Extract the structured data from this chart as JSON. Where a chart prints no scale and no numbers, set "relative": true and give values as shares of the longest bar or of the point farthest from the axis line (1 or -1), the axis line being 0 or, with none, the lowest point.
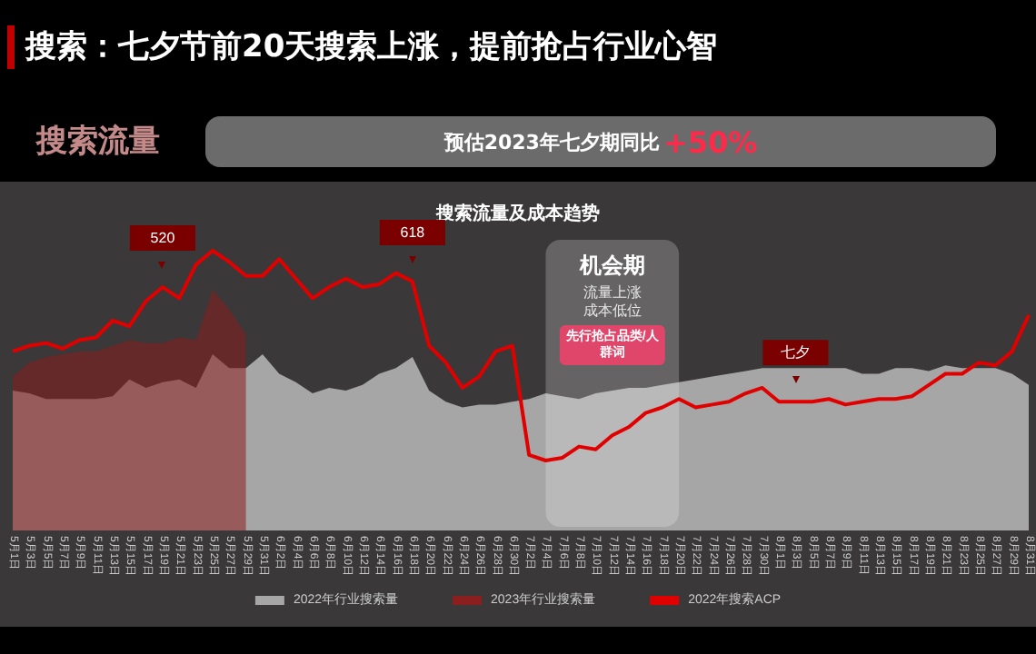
{
  "chart_data": {
    "type": "area",
    "title": "搜索：七夕节前20天搜索上涨，提前抢占行业心智",
    "subtitle": "搜索流量及成本趋势",
    "relative": true,
    "marker": "none",
    "legend": "bottom",
    "grid": false,
    "tick_labels": "x",
    "categories": [
      "5月1日",
      "5月3日",
      "5月5日",
      "5月7日",
      "5月9日",
      "5月11日",
      "5月13日",
      "5月15日",
      "5月17日",
      "5月19日",
      "5月21日",
      "5月23日",
      "5月25日",
      "5月27日",
      "5月29日",
      "5月31日",
      "6月2日",
      "6月4日",
      "6月6日",
      "6月8日",
      "6月10日",
      "6月12日",
      "6月14日",
      "6月16日",
      "6月18日",
      "6月20日",
      "6月22日",
      "6月24日",
      "6月26日",
      "6月28日",
      "6月30日",
      "7月2日",
      "7月4日",
      "7月6日",
      "7月8日",
      "7月10日",
      "7月12日",
      "7月14日",
      "7月16日",
      "7月18日",
      "7月20日",
      "7月22日",
      "7月24日",
      "7月26日",
      "7月28日",
      "7月30日",
      "8月1日",
      "8月3日",
      "8月5日",
      "8月7日",
      "8月9日",
      "8月11日",
      "8月13日",
      "8月15日",
      "8月17日",
      "8月19日",
      "8月21日",
      "8月23日",
      "8月25日",
      "8月27日",
      "8月29日",
      "8月31日"
    ],
    "series": [
      {
        "name": "2022年行业搜索量",
        "color": "#a6a6a6",
        "values": [
          0.5,
          0.49,
          0.47,
          0.47,
          0.47,
          0.47,
          0.48,
          0.54,
          0.51,
          0.53,
          0.54,
          0.51,
          0.63,
          0.58,
          0.58,
          0.63,
          0.56,
          0.53,
          0.49,
          0.51,
          0.5,
          0.52,
          0.56,
          0.58,
          0.62,
          0.5,
          0.46,
          0.44,
          0.45,
          0.45,
          0.46,
          0.47,
          0.49,
          0.48,
          0.47,
          0.49,
          0.5,
          0.51,
          0.51,
          0.52,
          0.53,
          0.54,
          0.55,
          0.56,
          0.57,
          0.58,
          0.58,
          0.58,
          0.58,
          0.58,
          0.58,
          0.56,
          0.56,
          0.58,
          0.58,
          0.57,
          0.59,
          0.58,
          0.58,
          0.58,
          0.56,
          0.52
        ]
      },
      {
        "name": "2023年行业搜索量",
        "type": "area",
        "color": "#8b1e1e",
        "values": [
          0.55,
          0.6,
          0.62,
          0.63,
          0.64,
          0.64,
          0.66,
          0.68,
          0.67,
          0.67,
          0.69,
          0.68,
          0.86,
          0.79,
          0.7,
          null,
          null,
          null,
          null,
          null,
          null,
          null,
          null,
          null,
          null,
          null,
          null,
          null,
          null,
          null,
          null,
          null,
          null,
          null,
          null,
          null,
          null,
          null,
          null,
          null,
          null,
          null,
          null,
          null,
          null,
          null,
          null,
          null,
          null,
          null,
          null,
          null,
          null,
          null,
          null,
          null,
          null,
          null,
          null,
          null,
          null,
          null
        ]
      },
      {
        "name": "2022年搜索ACP",
        "type": "line",
        "color": "#e00000",
        "values": [
          0.64,
          0.66,
          0.67,
          0.65,
          0.68,
          0.69,
          0.75,
          0.73,
          0.82,
          0.87,
          0.83,
          0.95,
          1,
          0.96,
          0.91,
          0.91,
          0.97,
          0.9,
          0.83,
          0.87,
          0.9,
          0.87,
          0.88,
          0.92,
          0.89,
          0.66,
          0.6,
          0.51,
          0.55,
          0.64,
          0.66,
          0.27,
          0.25,
          0.26,
          0.3,
          0.29,
          0.34,
          0.37,
          0.42,
          0.44,
          0.47,
          0.44,
          0.45,
          0.46,
          0.49,
          0.51,
          0.46,
          0.46,
          0.46,
          0.47,
          0.45,
          0.46,
          0.47,
          0.47,
          0.48,
          0.52,
          0.56,
          0.56,
          0.6,
          0.59,
          0.64,
          0.77
        ]
      }
    ],
    "bands": [
      {
        "axis": "x",
        "from": "7月4日",
        "to": "7月20日",
        "label": "机会期",
        "color": "#ffffff"
      }
    ],
    "annotations": [
      "搜索流量",
      "预估2023年七夕期同比",
      "+50%",
      {
        "text": "520",
        "x": "5月19日",
        "y": 0.87
      },
      {
        "text": "618",
        "x": "6月18日",
        "y": 0.89
      },
      {
        "text": "七夕",
        "x": "8月3日",
        "y": 0.46
      },
      "流量上涨",
      "成本低位",
      "先行抢占品类/人群词"
    ]
  }
}
